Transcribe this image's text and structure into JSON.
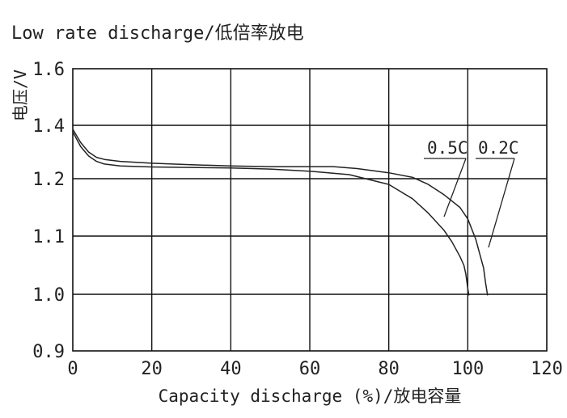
{
  "chart_data": {
    "type": "line",
    "title": "Low rate discharge/低倍率放电",
    "xlabel": "Capacity discharge (%)/放电容量",
    "ylabel": "电压/V",
    "xlim": [
      0,
      120
    ],
    "ylim": [
      0.9,
      1.6
    ],
    "x_ticks": [
      "0",
      "20",
      "40",
      "60",
      "80",
      "100",
      "120"
    ],
    "y_ticks": [
      "0.9",
      "1.0",
      "1.1",
      "1.2",
      "1.4",
      "1.6"
    ],
    "grid": true,
    "series": [
      {
        "name": "0.5C",
        "x": [
          0,
          2,
          4,
          6,
          8,
          12,
          20,
          30,
          40,
          50,
          60,
          70,
          80,
          86,
          90,
          94,
          96,
          98,
          99,
          99.5,
          100,
          100.3
        ],
        "y": [
          1.375,
          1.32,
          1.285,
          1.265,
          1.255,
          1.248,
          1.244,
          1.242,
          1.24,
          1.236,
          1.228,
          1.215,
          1.19,
          1.165,
          1.14,
          1.11,
          1.09,
          1.065,
          1.05,
          1.035,
          1.01,
          0.998
        ]
      },
      {
        "name": "0.2C",
        "x": [
          0,
          2,
          4,
          6,
          8,
          12,
          20,
          30,
          40,
          50,
          60,
          66,
          72,
          80,
          86,
          90,
          94,
          98,
          100,
          102,
          103,
          104,
          104.5,
          105
        ],
        "y": [
          1.385,
          1.335,
          1.3,
          1.28,
          1.272,
          1.265,
          1.258,
          1.252,
          1.248,
          1.245,
          1.245,
          1.245,
          1.238,
          1.222,
          1.205,
          1.19,
          1.172,
          1.15,
          1.13,
          1.095,
          1.07,
          1.045,
          1.02,
          0.998
        ]
      }
    ]
  }
}
